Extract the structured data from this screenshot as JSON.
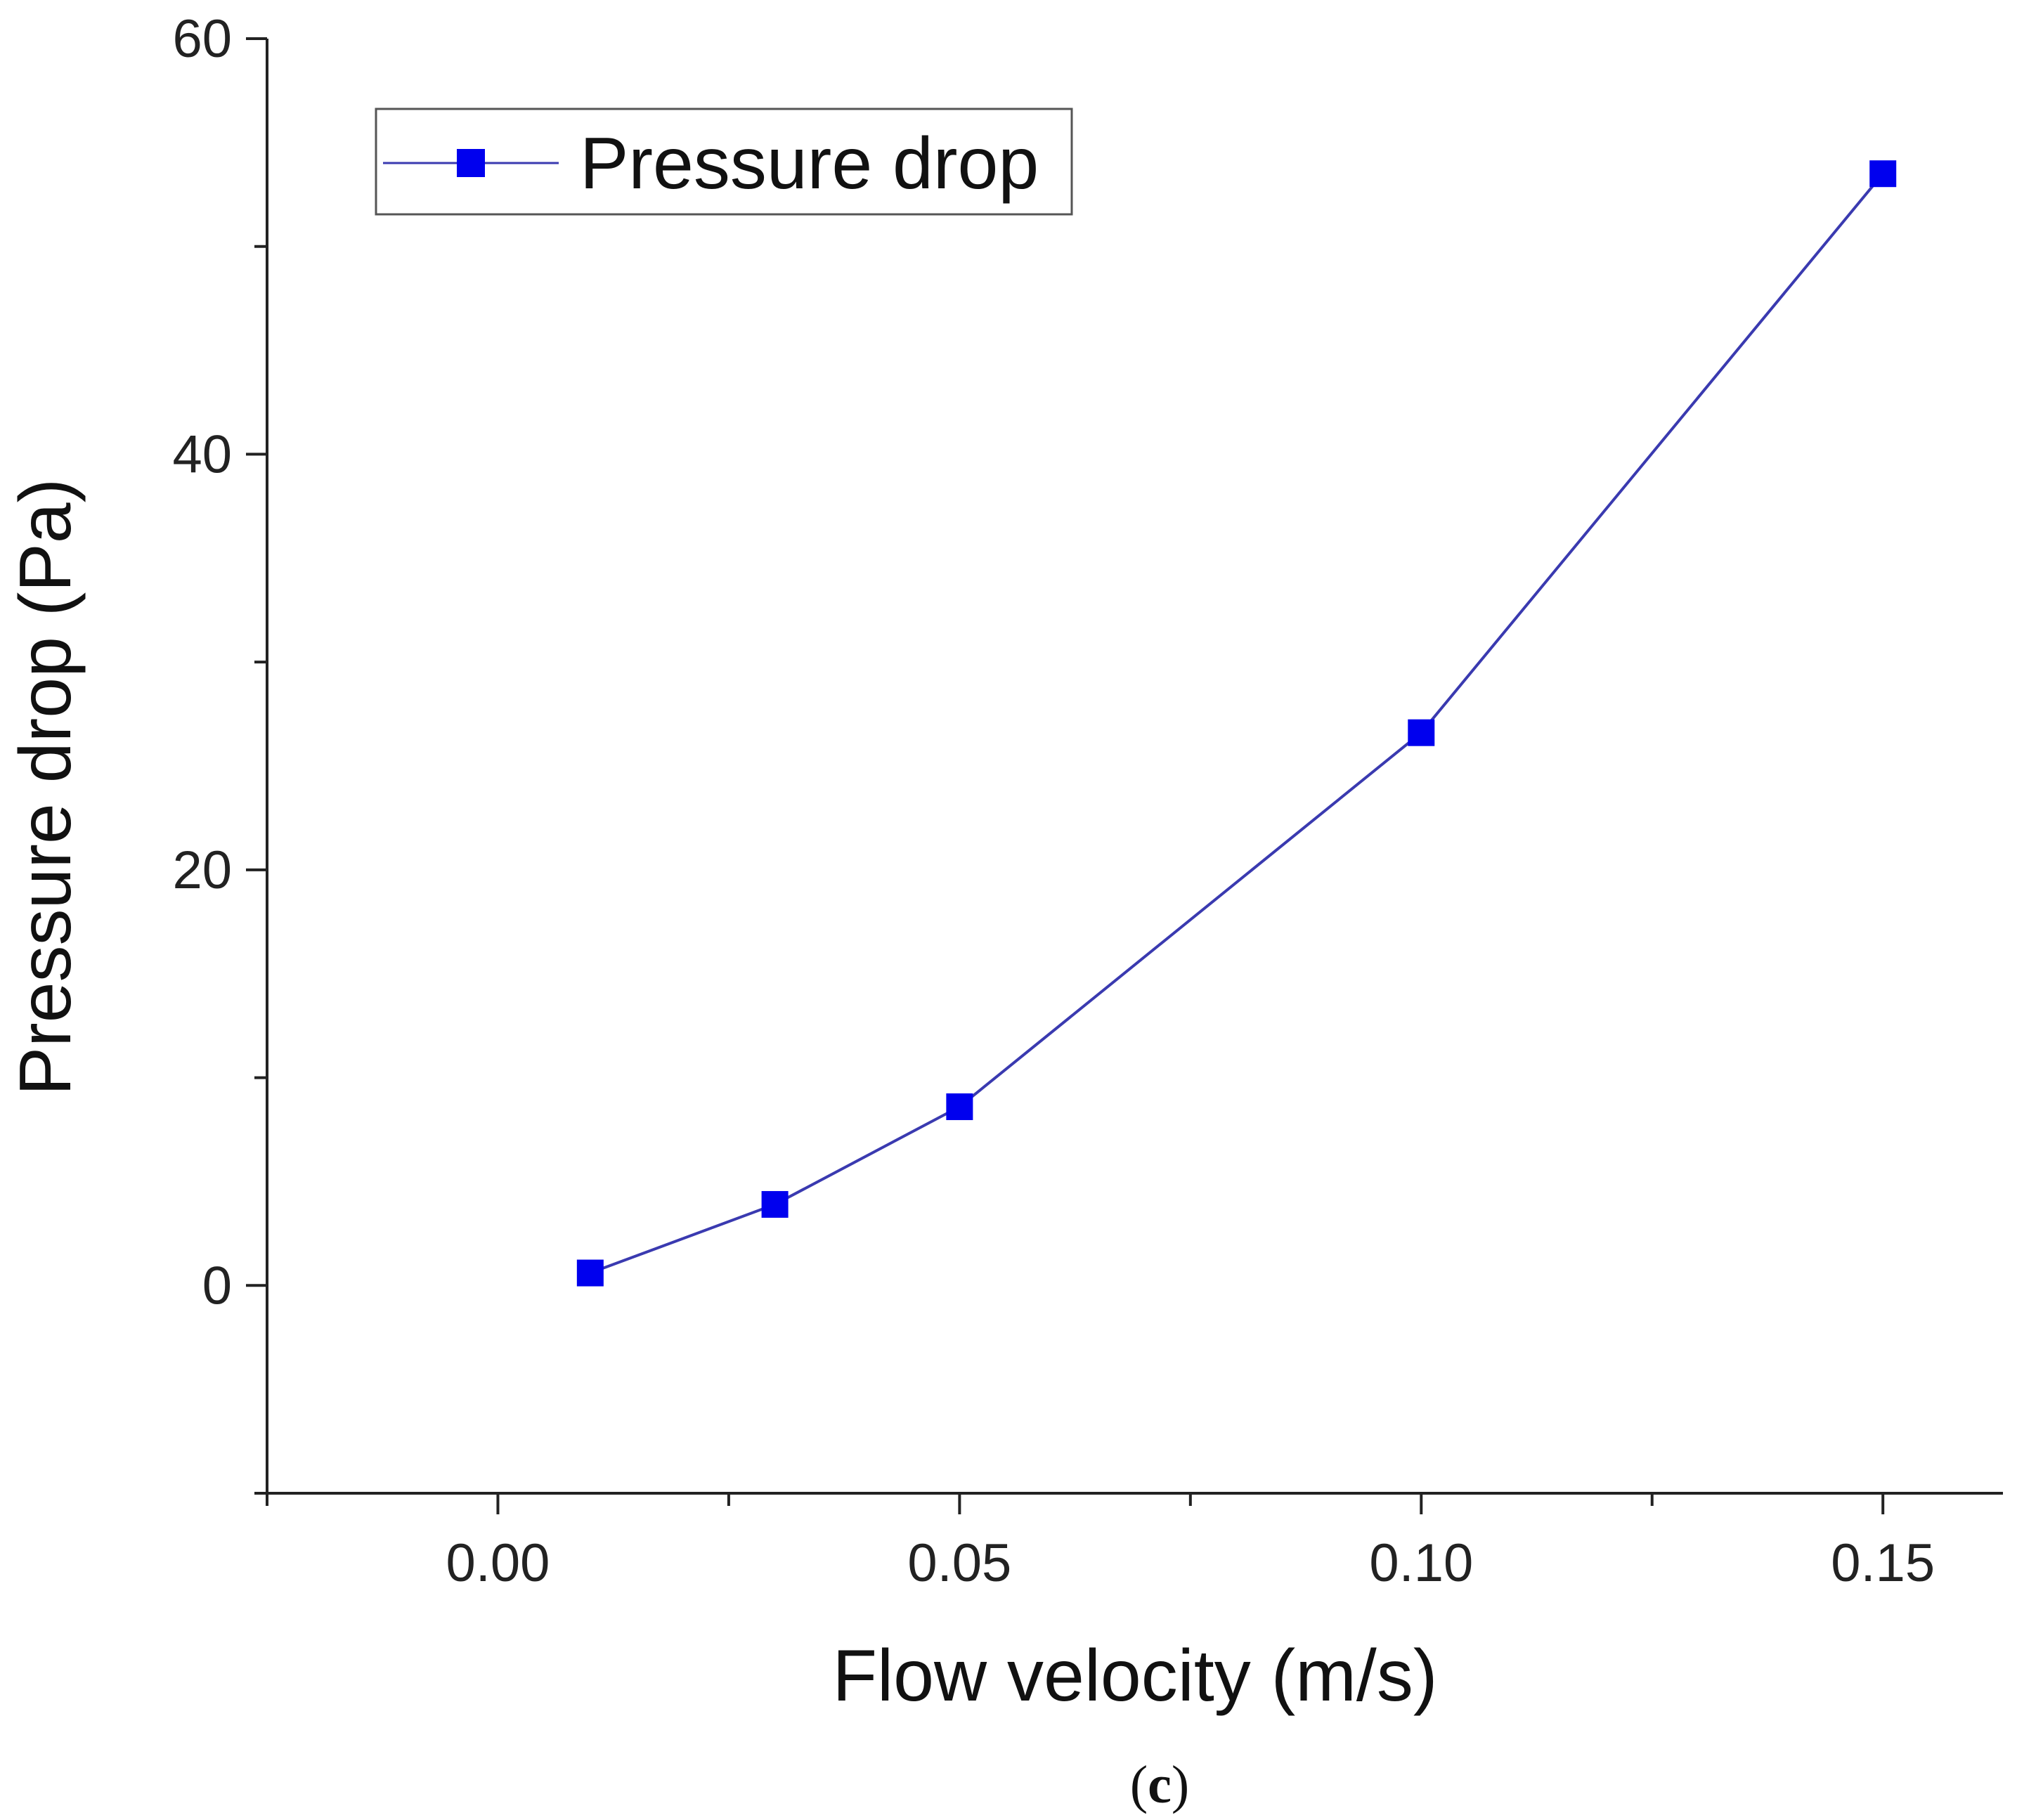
{
  "chart_data": {
    "type": "line",
    "title": "",
    "xlabel": "Flow velocity (m/s)",
    "ylabel": "Pressure drop (Pa)",
    "xlim": [
      -0.025,
      0.163
    ],
    "ylim": [
      -10,
      60
    ],
    "x_ticks": [
      0.0,
      0.05,
      0.1,
      0.15
    ],
    "x_tick_labels": [
      "0.00",
      "0.05",
      "0.10",
      "0.15"
    ],
    "x_minor_ticks": [
      -0.025,
      0.025,
      0.075,
      0.125
    ],
    "y_ticks": [
      0,
      20,
      40,
      60
    ],
    "y_tick_labels": [
      "0",
      "20",
      "40",
      "60"
    ],
    "y_minor_ticks": [
      -10,
      10,
      30,
      50
    ],
    "legend": {
      "position": "top-left",
      "entries": [
        "Pressure drop"
      ]
    },
    "series": [
      {
        "name": "Pressure drop",
        "color": "#0000ee",
        "line_color": "#3a3ab0",
        "marker": "square",
        "x": [
          0.01,
          0.03,
          0.05,
          0.1,
          0.15
        ],
        "y": [
          0.6,
          3.9,
          8.6,
          26.6,
          53.5
        ]
      }
    ],
    "grid": false
  },
  "caption": {
    "open": "(",
    "letter": "c",
    "close": ")"
  }
}
